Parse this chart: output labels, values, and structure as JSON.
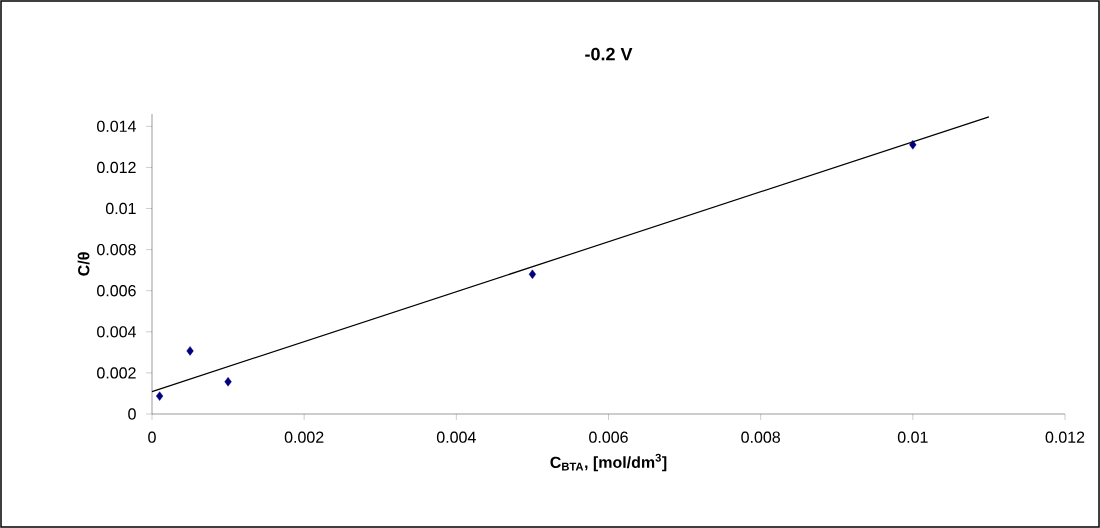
{
  "chart_data": {
    "type": "scatter",
    "title": "-0.2 V",
    "xlabel": "C$_{BTA}$, [mol/dm$^{3}$]",
    "ylabel": "C/θ",
    "x": [
      0.0001,
      0.0005,
      0.001,
      0.005,
      0.01
    ],
    "series": [
      {
        "color": "#000080",
        "values": [
          0.00087,
          0.00307,
          0.00157,
          0.0068,
          0.0131
        ],
        "marker": "diamond"
      },
      {
        "type": "line",
        "color": "#000000",
        "x": [
          0,
          0.011
        ],
        "values": [
          0.00109,
          0.01446
        ],
        "marker": "none",
        "line_style": "solid"
      }
    ],
    "xlim": [
      0,
      0.012
    ],
    "xticks": [
      0,
      0.002,
      0.004,
      0.006,
      0.008,
      0.01,
      0.012
    ],
    "ylim": [
      0,
      0.0146
    ],
    "yticks": [
      0,
      0.002,
      0.004,
      0.006,
      0.008,
      0.01,
      0.012,
      0.014
    ],
    "grid": false
  }
}
